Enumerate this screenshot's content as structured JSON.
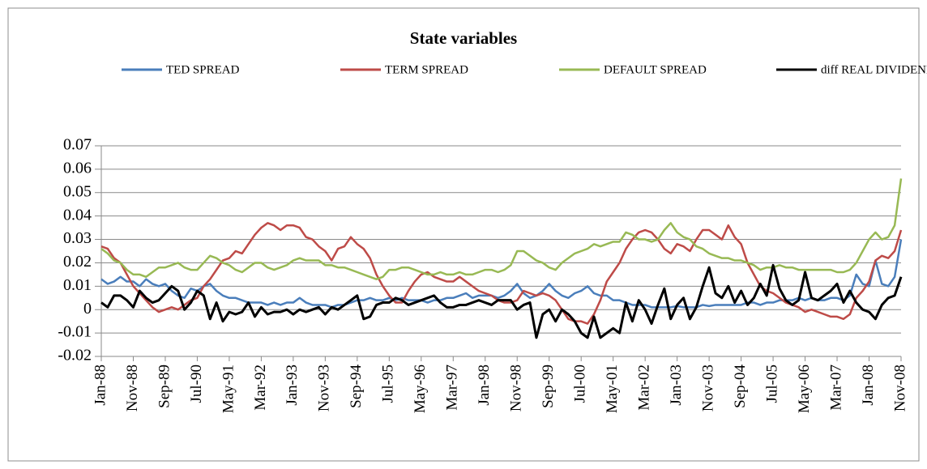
{
  "chart_data": {
    "type": "line",
    "title": "State variables",
    "categories": [
      "Jan-88",
      null,
      null,
      null,
      null,
      "Nov-88",
      null,
      null,
      null,
      null,
      "Sep-89",
      null,
      null,
      null,
      null,
      "Jul-90",
      null,
      null,
      null,
      null,
      "May-91",
      null,
      null,
      null,
      null,
      "Mar-92",
      null,
      null,
      null,
      null,
      "Jan-93",
      null,
      null,
      null,
      null,
      "Nov-93",
      null,
      null,
      null,
      null,
      "Sep-94",
      null,
      null,
      null,
      null,
      "Jul-95",
      null,
      null,
      null,
      null,
      "May-96",
      null,
      null,
      null,
      null,
      "Mar-97",
      null,
      null,
      null,
      null,
      "Jan-98",
      null,
      null,
      null,
      null,
      "Nov-98",
      null,
      null,
      null,
      null,
      "Sep-99",
      null,
      null,
      null,
      null,
      "Jul-00",
      null,
      null,
      null,
      null,
      "May-01",
      null,
      null,
      null,
      null,
      "Mar-02",
      null,
      null,
      null,
      null,
      "Jan-03",
      null,
      null,
      null,
      null,
      "Nov-03",
      null,
      null,
      null,
      null,
      "Sep-04",
      null,
      null,
      null,
      null,
      "Jul-05",
      null,
      null,
      null,
      null,
      "May-06",
      null,
      null,
      null,
      null,
      "Mar-07",
      null,
      null,
      null,
      null,
      "Jan-08",
      null,
      null,
      null,
      null,
      "Nov-08"
    ],
    "series": [
      {
        "name": "TED SPREAD",
        "color": "#4a7ebb",
        "values": [
          0.013,
          0.011,
          0.012,
          0.014,
          0.012,
          0.012,
          0.01,
          0.013,
          0.011,
          0.01,
          0.011,
          0.008,
          0.006,
          0.005,
          0.009,
          0.008,
          0.01,
          0.011,
          0.008,
          0.006,
          0.005,
          0.005,
          0.004,
          0.003,
          0.003,
          0.003,
          0.002,
          0.003,
          0.002,
          0.003,
          0.003,
          0.005,
          0.003,
          0.002,
          0.002,
          0.002,
          0.001,
          0.002,
          0.002,
          0.003,
          0.004,
          0.004,
          0.005,
          0.004,
          0.004,
          0.005,
          0.004,
          0.005,
          0.004,
          0.004,
          0.004,
          0.003,
          0.004,
          0.004,
          0.005,
          0.005,
          0.006,
          0.007,
          0.005,
          0.006,
          0.006,
          0.006,
          0.005,
          0.006,
          0.008,
          0.011,
          0.007,
          0.005,
          0.006,
          0.008,
          0.011,
          0.008,
          0.006,
          0.005,
          0.007,
          0.008,
          0.01,
          0.007,
          0.006,
          0.006,
          0.004,
          0.004,
          0.003,
          0.002,
          0.002,
          0.002,
          0.001,
          0.001,
          0.001,
          0.001,
          0.0015,
          0.001,
          0.001,
          0.001,
          0.002,
          0.0015,
          0.002,
          0.002,
          0.002,
          0.002,
          0.002,
          0.003,
          0.003,
          0.002,
          0.003,
          0.003,
          0.004,
          0.004,
          0.004,
          0.005,
          0.004,
          0.005,
          0.004,
          0.004,
          0.005,
          0.005,
          0.004,
          0.006,
          0.015,
          0.011,
          0.01,
          0.021,
          0.011,
          0.01,
          0.014,
          0.03
        ]
      },
      {
        "name": "TERM SPREAD",
        "color": "#be4b48",
        "values": [
          0.027,
          0.026,
          0.022,
          0.02,
          0.015,
          0.01,
          0.007,
          0.004,
          0.001,
          -0.001,
          0.0,
          0.001,
          0.0,
          0.002,
          0.004,
          0.005,
          0.01,
          0.013,
          0.017,
          0.021,
          0.022,
          0.025,
          0.024,
          0.028,
          0.032,
          0.035,
          0.037,
          0.036,
          0.034,
          0.036,
          0.036,
          0.035,
          0.031,
          0.03,
          0.027,
          0.025,
          0.021,
          0.026,
          0.027,
          0.031,
          0.028,
          0.026,
          0.022,
          0.015,
          0.01,
          0.006,
          0.003,
          0.003,
          0.008,
          0.012,
          0.015,
          0.016,
          0.014,
          0.013,
          0.012,
          0.012,
          0.014,
          0.012,
          0.01,
          0.008,
          0.007,
          0.006,
          0.004,
          0.003,
          0.003,
          0.004,
          0.008,
          0.007,
          0.006,
          0.007,
          0.006,
          0.004,
          0.0,
          -0.004,
          -0.005,
          -0.005,
          -0.006,
          -0.002,
          0.004,
          0.012,
          0.016,
          0.02,
          0.026,
          0.03,
          0.033,
          0.034,
          0.033,
          0.03,
          0.026,
          0.024,
          0.028,
          0.027,
          0.025,
          0.03,
          0.034,
          0.034,
          0.032,
          0.03,
          0.036,
          0.031,
          0.028,
          0.02,
          0.015,
          0.01,
          0.008,
          0.007,
          0.005,
          0.003,
          0.002,
          0.001,
          -0.001,
          0.0,
          -0.001,
          -0.002,
          -0.003,
          -0.003,
          -0.004,
          -0.002,
          0.005,
          0.008,
          0.012,
          0.021,
          0.023,
          0.022,
          0.025,
          0.034
        ]
      },
      {
        "name": "DEFAULT SPREAD",
        "color": "#98b954",
        "values": [
          0.026,
          0.024,
          0.021,
          0.02,
          0.017,
          0.015,
          0.015,
          0.014,
          0.016,
          0.018,
          0.018,
          0.019,
          0.02,
          0.018,
          0.017,
          0.017,
          0.02,
          0.023,
          0.022,
          0.02,
          0.019,
          0.017,
          0.016,
          0.018,
          0.02,
          0.02,
          0.018,
          0.017,
          0.018,
          0.019,
          0.021,
          0.022,
          0.021,
          0.021,
          0.021,
          0.019,
          0.019,
          0.018,
          0.018,
          0.017,
          0.016,
          0.015,
          0.014,
          0.013,
          0.014,
          0.017,
          0.017,
          0.018,
          0.018,
          0.017,
          0.016,
          0.015,
          0.015,
          0.016,
          0.015,
          0.015,
          0.016,
          0.015,
          0.015,
          0.016,
          0.017,
          0.017,
          0.016,
          0.017,
          0.019,
          0.025,
          0.025,
          0.023,
          0.021,
          0.02,
          0.018,
          0.017,
          0.02,
          0.022,
          0.024,
          0.025,
          0.026,
          0.028,
          0.027,
          0.028,
          0.029,
          0.029,
          0.033,
          0.032,
          0.03,
          0.03,
          0.029,
          0.03,
          0.034,
          0.037,
          0.033,
          0.031,
          0.03,
          0.027,
          0.026,
          0.024,
          0.023,
          0.022,
          0.022,
          0.021,
          0.021,
          0.02,
          0.019,
          0.017,
          0.018,
          0.018,
          0.019,
          0.018,
          0.018,
          0.017,
          0.017,
          0.017,
          0.017,
          0.017,
          0.017,
          0.016,
          0.016,
          0.017,
          0.02,
          0.025,
          0.03,
          0.033,
          0.03,
          0.031,
          0.036,
          0.056
        ]
      },
      {
        "name": "diff REAL DIVIDEND",
        "color": "#000000",
        "values": [
          0.003,
          0.001,
          0.006,
          0.006,
          0.004,
          0.001,
          0.008,
          0.005,
          0.003,
          0.004,
          0.007,
          0.01,
          0.008,
          0.0,
          0.003,
          0.008,
          0.006,
          -0.004,
          0.003,
          -0.005,
          -0.001,
          -0.002,
          -0.001,
          0.003,
          -0.003,
          0.001,
          -0.002,
          -0.001,
          -0.001,
          0.0,
          -0.002,
          0.0,
          -0.001,
          0.0,
          0.001,
          -0.002,
          0.001,
          0.0,
          0.002,
          0.004,
          0.006,
          -0.004,
          -0.003,
          0.002,
          0.003,
          0.003,
          0.005,
          0.004,
          0.002,
          0.003,
          0.004,
          0.005,
          0.006,
          0.003,
          0.001,
          0.001,
          0.002,
          0.002,
          0.003,
          0.004,
          0.003,
          0.002,
          0.004,
          0.004,
          0.004,
          0.0,
          0.002,
          0.003,
          -0.012,
          -0.002,
          0.0,
          -0.005,
          0.0,
          -0.002,
          -0.005,
          -0.01,
          -0.012,
          -0.003,
          -0.012,
          -0.01,
          -0.008,
          -0.01,
          0.003,
          -0.005,
          0.004,
          0.0,
          -0.006,
          0.002,
          0.009,
          -0.004,
          0.002,
          0.005,
          -0.004,
          0.001,
          0.01,
          0.018,
          0.007,
          0.005,
          0.01,
          0.003,
          0.008,
          0.002,
          0.005,
          0.011,
          0.006,
          0.019,
          0.009,
          0.004,
          0.002,
          0.004,
          0.016,
          0.005,
          0.004,
          0.006,
          0.008,
          0.011,
          0.003,
          0.008,
          0.003,
          0.0,
          -0.001,
          -0.004,
          0.002,
          0.005,
          0.006,
          0.014
        ]
      }
    ],
    "ylim": [
      -0.02,
      0.07
    ],
    "yticks": [
      -0.02,
      -0.01,
      0,
      0.01,
      0.02,
      0.03,
      0.04,
      0.05,
      0.06,
      0.07
    ],
    "grid": true
  }
}
